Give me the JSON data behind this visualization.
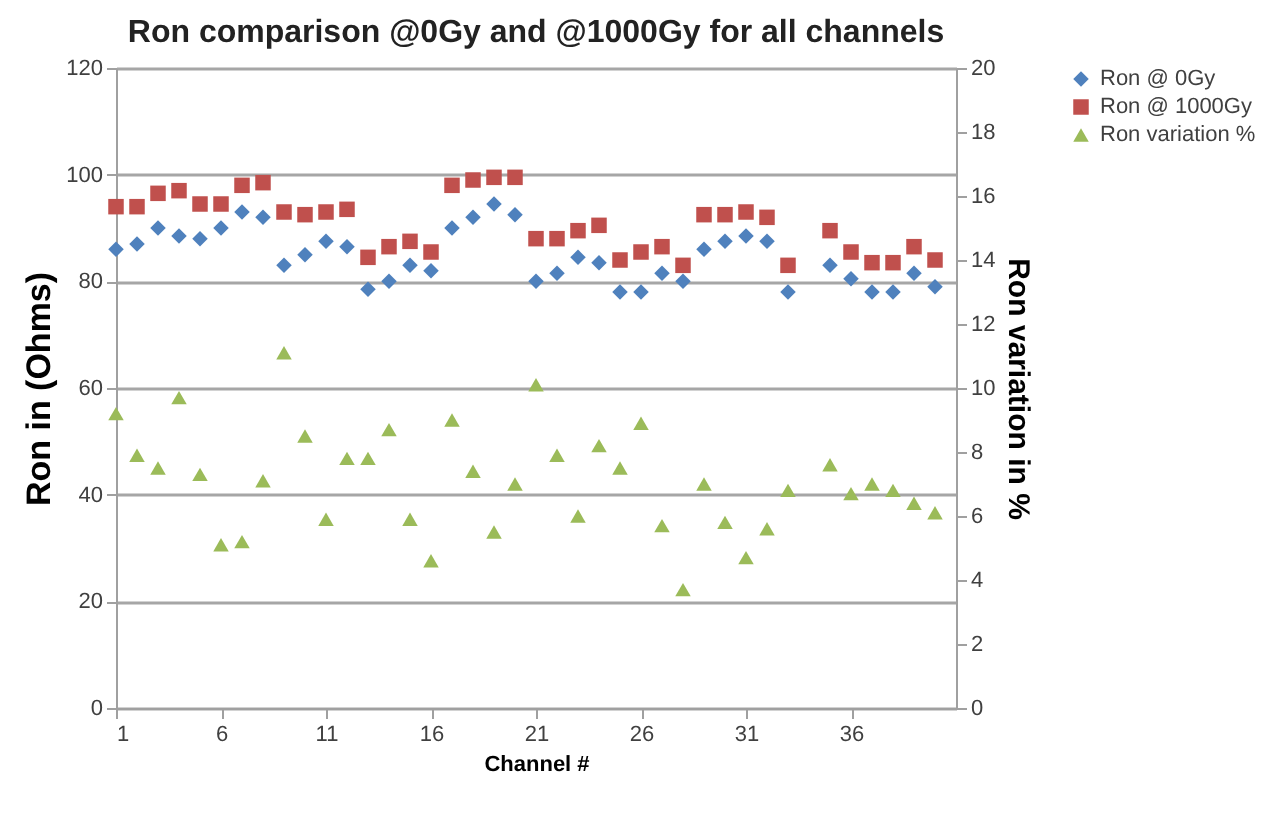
{
  "chart_data": {
    "type": "scatter",
    "title": "Ron comparison @0Gy and @1000Gy for all channels",
    "xlabel": "Channel #",
    "ylabel": "Ron in (Ohms)",
    "y2label": "Ron variation in %",
    "x": [
      1,
      2,
      3,
      4,
      5,
      6,
      7,
      8,
      9,
      10,
      11,
      12,
      13,
      14,
      15,
      16,
      17,
      18,
      19,
      20,
      21,
      22,
      23,
      24,
      25,
      26,
      27,
      28,
      29,
      30,
      31,
      32,
      33,
      34,
      35,
      36,
      37,
      38,
      39,
      40
    ],
    "series": [
      {
        "name": "Ron @ 0Gy",
        "color": "#4f81bd",
        "marker": "diamond",
        "values": [
          86,
          87,
          90,
          88.5,
          88,
          90,
          93,
          92,
          83,
          85,
          87.5,
          86.5,
          78.5,
          80,
          83,
          82,
          90,
          92,
          94.5,
          92.5,
          80,
          81.5,
          84.5,
          83.5,
          78,
          78,
          81.5,
          80,
          86,
          87.5,
          88.5,
          87.5,
          78,
          null,
          83,
          80.5,
          78,
          78,
          81.5,
          79
        ]
      },
      {
        "name": "Ron @ 1000Gy",
        "color": "#c0504d",
        "marker": "square",
        "values": [
          94,
          94,
          96.5,
          97,
          94.5,
          94.5,
          98,
          98.5,
          93,
          92.5,
          93,
          93.5,
          84.5,
          86.5,
          87.5,
          85.5,
          98,
          99,
          99.5,
          99.5,
          88,
          88,
          89.5,
          90.5,
          84,
          85.5,
          86.5,
          83,
          92.5,
          92.5,
          93,
          92,
          83,
          null,
          89.5,
          85.5,
          83.5,
          83.5,
          86.5,
          84
        ]
      },
      {
        "name": "Ron variation %",
        "color": "#9bbb59",
        "marker": "triangle",
        "axis": "y2",
        "values": [
          9.2,
          7.9,
          7.5,
          9.7,
          7.3,
          5.1,
          5.2,
          7.1,
          11.1,
          8.5,
          5.9,
          7.8,
          7.8,
          8.7,
          5.9,
          4.6,
          9.0,
          7.4,
          5.5,
          7.0,
          10.1,
          7.9,
          6.0,
          8.2,
          7.5,
          8.9,
          5.7,
          3.7,
          7.0,
          5.8,
          4.7,
          5.6,
          6.8,
          null,
          7.6,
          6.7,
          7.0,
          6.8,
          6.4,
          6.1
        ]
      }
    ],
    "xlim": [
      1,
      41
    ],
    "xticks": [
      1,
      6,
      11,
      16,
      21,
      26,
      31,
      36
    ],
    "ylim": [
      0,
      120
    ],
    "yticks": [
      0,
      20,
      40,
      60,
      80,
      100,
      120
    ],
    "y2lim": [
      0,
      20
    ],
    "y2ticks": [
      0,
      2,
      4,
      6,
      8,
      10,
      12,
      14,
      16,
      18,
      20
    ],
    "grid": "y",
    "legend": "right"
  }
}
